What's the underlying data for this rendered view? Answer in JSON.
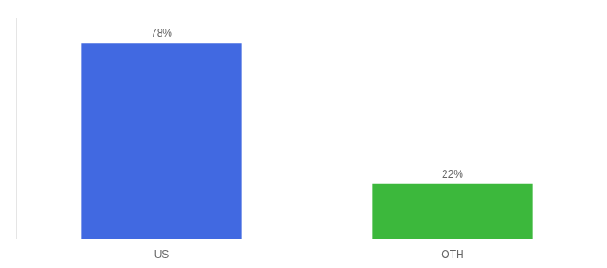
{
  "chart_data": {
    "type": "bar",
    "categories": [
      "US",
      "OTH"
    ],
    "values": [
      78,
      22
    ],
    "value_labels": [
      "78%",
      "22%"
    ],
    "colors": [
      "#4169e1",
      "#3cb83c"
    ],
    "ylim": [
      0,
      88
    ],
    "grid": false,
    "data_labels": true,
    "tick_labels": "x"
  }
}
